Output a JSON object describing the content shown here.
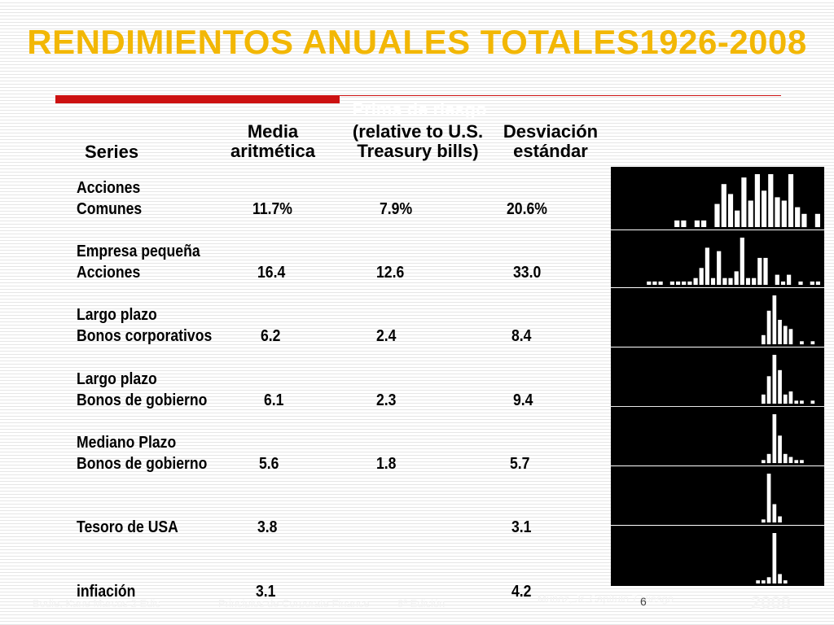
{
  "title": "RENDIMIENTOS ANUALES TOTALES1926-2008",
  "headers": {
    "series": "Series",
    "mean_line1": "Media",
    "mean_line2": "aritmética",
    "premium_line0": "Prima de riesgo",
    "premium_line1": "(relative to U.S.",
    "premium_line2": "Treasury bills)",
    "sd_line1": "Desviación",
    "sd_line2": "estándar"
  },
  "rows": [
    {
      "name1": "Acciones",
      "name2": "Comunes",
      "mean": "11.7%",
      "premium": "7.9%",
      "sd": "20.6%"
    },
    {
      "name1": "Empresa pequeña",
      "name2": "Acciones",
      "mean": "16.4",
      "premium": "12.6",
      "sd": "33.0"
    },
    {
      "name1": "Largo plazo",
      "name2": "Bonos corporativos",
      "mean": "6.2",
      "premium": "2.4",
      "sd": "8.4"
    },
    {
      "name1": "Largo plazo",
      "name2": "Bonos de gobierno",
      "mean": "6.1",
      "premium": "2.3",
      "sd": "9.4"
    },
    {
      "name1": "Mediano Plazo",
      "name2": "Bonos de gobierno",
      "mean": "5.6",
      "premium": "1.8",
      "sd": "5.7"
    },
    {
      "name1": "",
      "name2": "Tesoro de USA",
      "mean": "3.8",
      "premium": "",
      "sd": "3.1"
    },
    {
      "name1": "",
      "name2": "infiación",
      "mean": "3.1",
      "premium": "",
      "sd": "4.2"
    }
  ],
  "chart_data": {
    "type": "bar",
    "note": "Seven small distribution histograms (relative bar heights, white bars on black)",
    "series": [
      {
        "values": [
          0,
          0,
          0,
          0,
          0,
          2,
          2,
          0,
          2,
          2,
          0,
          7,
          13,
          10,
          5,
          15,
          8,
          16,
          11,
          16,
          9,
          8,
          16,
          6,
          4,
          0,
          4
        ]
      },
      {
        "values": [
          0,
          1,
          1,
          1,
          0,
          1,
          1,
          1,
          1,
          2,
          5,
          11,
          2,
          10,
          2,
          2,
          4,
          14,
          2,
          2,
          8,
          8,
          0,
          3,
          1,
          3,
          0,
          1,
          0,
          1,
          1
        ]
      },
      {
        "values": [
          0,
          0,
          0,
          0,
          0,
          0,
          0,
          0,
          0,
          0,
          0,
          0,
          0,
          0,
          0,
          0,
          0,
          0,
          0,
          0,
          0,
          0,
          3,
          11,
          16,
          8,
          6,
          5,
          0,
          1,
          0,
          1,
          0
        ]
      },
      {
        "values": [
          0,
          0,
          0,
          0,
          0,
          0,
          0,
          0,
          0,
          0,
          0,
          0,
          0,
          0,
          0,
          0,
          0,
          0,
          0,
          0,
          0,
          0,
          3,
          9,
          16,
          11,
          3,
          4,
          1,
          1,
          0,
          1,
          0
        ]
      },
      {
        "values": [
          0,
          0,
          0,
          0,
          0,
          0,
          0,
          0,
          0,
          0,
          0,
          0,
          0,
          0,
          0,
          0,
          0,
          0,
          0,
          0,
          0,
          0,
          1,
          3,
          16,
          9,
          3,
          2,
          1,
          1,
          0,
          0,
          0
        ]
      },
      {
        "values": [
          0,
          0,
          0,
          0,
          0,
          0,
          0,
          0,
          0,
          0,
          0,
          0,
          0,
          0,
          0,
          0,
          0,
          0,
          0,
          0,
          0,
          0,
          1,
          16,
          6,
          2,
          0,
          0,
          0,
          0,
          0,
          0,
          0
        ]
      },
      {
        "values": [
          0,
          0,
          0,
          0,
          0,
          0,
          0,
          0,
          0,
          0,
          0,
          0,
          0,
          0,
          0,
          0,
          0,
          0,
          0,
          0,
          0,
          1,
          1,
          2,
          16,
          3,
          1,
          0,
          0,
          0,
          0,
          0,
          0
        ]
      }
    ]
  },
  "footer": {
    "left": "Bodie, Kane Marcus 2 Edic",
    "mid": "Principios de Corporate Finance",
    "mid2": "8ª Edición",
    "right": "Muñoz, Jr.  Capítulo 7 Riesgo",
    "page": "6",
    "brand": "2008"
  },
  "colors": {
    "title": "#f2b705",
    "accent_red": "#cc1111",
    "panel_bg": "#000000",
    "bars": "#ffffff"
  }
}
